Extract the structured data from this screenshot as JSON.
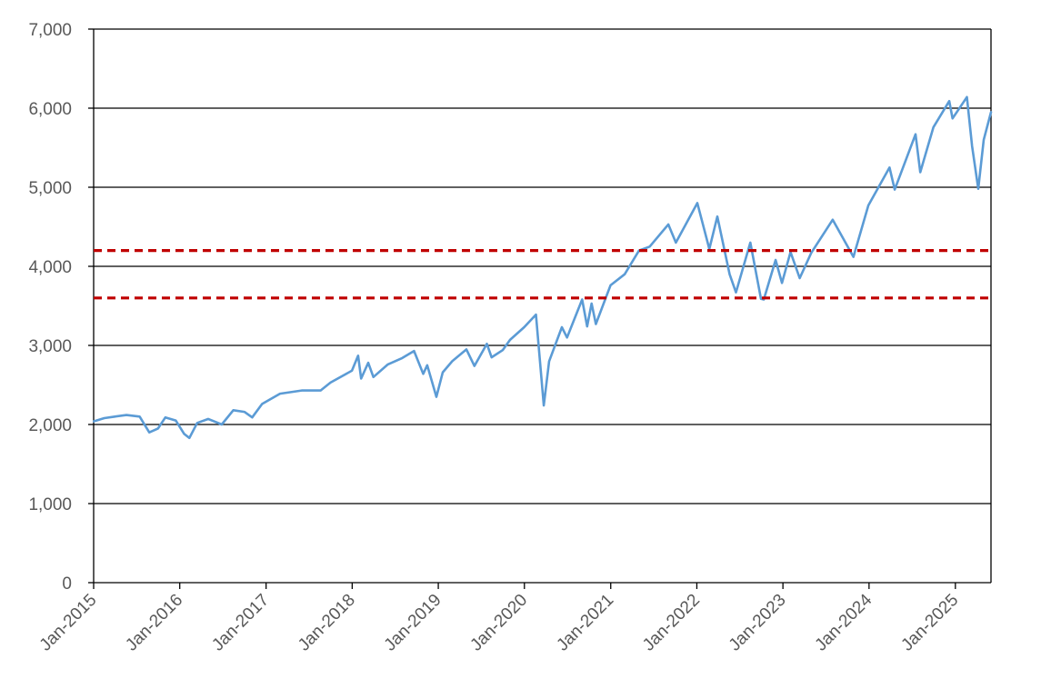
{
  "chart_data": {
    "type": "line",
    "title": "",
    "xlabel": "",
    "ylabel": "",
    "x_range": [
      "2015-01-01",
      "2025-06-01"
    ],
    "ylim": [
      0,
      7000
    ],
    "y_ticks": [
      0,
      1000,
      2000,
      3000,
      4000,
      5000,
      6000,
      7000
    ],
    "y_tick_labels": [
      "0",
      "1,000",
      "2,000",
      "3,000",
      "4,000",
      "5,000",
      "6,000",
      "7,000"
    ],
    "x_tick_dates": [
      "2015-01-01",
      "2016-01-01",
      "2017-01-01",
      "2018-01-01",
      "2019-01-01",
      "2020-01-01",
      "2021-01-01",
      "2022-01-01",
      "2023-01-01",
      "2024-01-01",
      "2025-01-01"
    ],
    "x_tick_labels": [
      "Jan-2015",
      "Jan-2016",
      "Jan-2017",
      "Jan-2018",
      "Jan-2019",
      "Jan-2020",
      "Jan-2021",
      "Jan-2022",
      "Jan-2023",
      "Jan-2024",
      "Jan-2025"
    ],
    "grid": "horizontal",
    "legend": "none",
    "series": [
      {
        "color": "#5b9bd5",
        "points": [
          [
            "2015-01-02",
            2040
          ],
          [
            "2015-02-15",
            2080
          ],
          [
            "2015-04-01",
            2100
          ],
          [
            "2015-05-20",
            2120
          ],
          [
            "2015-07-15",
            2100
          ],
          [
            "2015-08-25",
            1900
          ],
          [
            "2015-10-01",
            1950
          ],
          [
            "2015-11-01",
            2090
          ],
          [
            "2015-12-15",
            2050
          ],
          [
            "2016-01-20",
            1880
          ],
          [
            "2016-02-11",
            1830
          ],
          [
            "2016-03-15",
            2020
          ],
          [
            "2016-05-01",
            2070
          ],
          [
            "2016-06-27",
            2000
          ],
          [
            "2016-08-15",
            2180
          ],
          [
            "2016-10-01",
            2160
          ],
          [
            "2016-11-03",
            2090
          ],
          [
            "2016-12-15",
            2260
          ],
          [
            "2017-03-01",
            2390
          ],
          [
            "2017-06-01",
            2430
          ],
          [
            "2017-08-20",
            2430
          ],
          [
            "2017-10-01",
            2530
          ],
          [
            "2017-12-31",
            2680
          ],
          [
            "2018-01-26",
            2870
          ],
          [
            "2018-02-08",
            2580
          ],
          [
            "2018-03-10",
            2780
          ],
          [
            "2018-04-01",
            2600
          ],
          [
            "2018-06-01",
            2760
          ],
          [
            "2018-08-01",
            2840
          ],
          [
            "2018-09-20",
            2930
          ],
          [
            "2018-10-29",
            2640
          ],
          [
            "2018-11-15",
            2750
          ],
          [
            "2018-12-24",
            2350
          ],
          [
            "2019-01-20",
            2660
          ],
          [
            "2019-03-01",
            2800
          ],
          [
            "2019-04-30",
            2950
          ],
          [
            "2019-06-03",
            2740
          ],
          [
            "2019-07-26",
            3020
          ],
          [
            "2019-08-15",
            2850
          ],
          [
            "2019-10-01",
            2940
          ],
          [
            "2019-11-01",
            3070
          ],
          [
            "2019-12-31",
            3230
          ],
          [
            "2020-02-19",
            3390
          ],
          [
            "2020-03-23",
            2240
          ],
          [
            "2020-04-15",
            2800
          ],
          [
            "2020-06-08",
            3230
          ],
          [
            "2020-06-30",
            3100
          ],
          [
            "2020-09-02",
            3580
          ],
          [
            "2020-09-23",
            3240
          ],
          [
            "2020-10-12",
            3530
          ],
          [
            "2020-10-30",
            3270
          ],
          [
            "2020-12-31",
            3760
          ],
          [
            "2021-03-01",
            3900
          ],
          [
            "2021-05-01",
            4200
          ],
          [
            "2021-06-15",
            4250
          ],
          [
            "2021-09-02",
            4530
          ],
          [
            "2021-10-04",
            4300
          ],
          [
            "2022-01-03",
            4800
          ],
          [
            "2022-02-23",
            4220
          ],
          [
            "2022-03-29",
            4630
          ],
          [
            "2022-05-20",
            3900
          ],
          [
            "2022-06-16",
            3670
          ],
          [
            "2022-08-16",
            4300
          ],
          [
            "2022-09-30",
            3590
          ],
          [
            "2022-10-12",
            3580
          ],
          [
            "2022-12-01",
            4080
          ],
          [
            "2022-12-28",
            3790
          ],
          [
            "2023-02-02",
            4180
          ],
          [
            "2023-03-13",
            3850
          ],
          [
            "2023-05-01",
            4170
          ],
          [
            "2023-07-31",
            4590
          ],
          [
            "2023-10-27",
            4120
          ],
          [
            "2023-12-29",
            4770
          ],
          [
            "2024-03-28",
            5250
          ],
          [
            "2024-04-19",
            4970
          ],
          [
            "2024-07-16",
            5670
          ],
          [
            "2024-08-05",
            5190
          ],
          [
            "2024-09-30",
            5760
          ],
          [
            "2024-12-06",
            6090
          ],
          [
            "2024-12-20",
            5870
          ],
          [
            "2025-02-19",
            6140
          ],
          [
            "2025-03-13",
            5520
          ],
          [
            "2025-04-08",
            4980
          ],
          [
            "2025-05-01",
            5600
          ],
          [
            "2025-06-01",
            5950
          ]
        ]
      }
    ],
    "reference_lines": [
      {
        "y": 4200,
        "color": "#c00000",
        "style": "dashed"
      },
      {
        "y": 3600,
        "color": "#c00000",
        "style": "dashed"
      }
    ]
  }
}
